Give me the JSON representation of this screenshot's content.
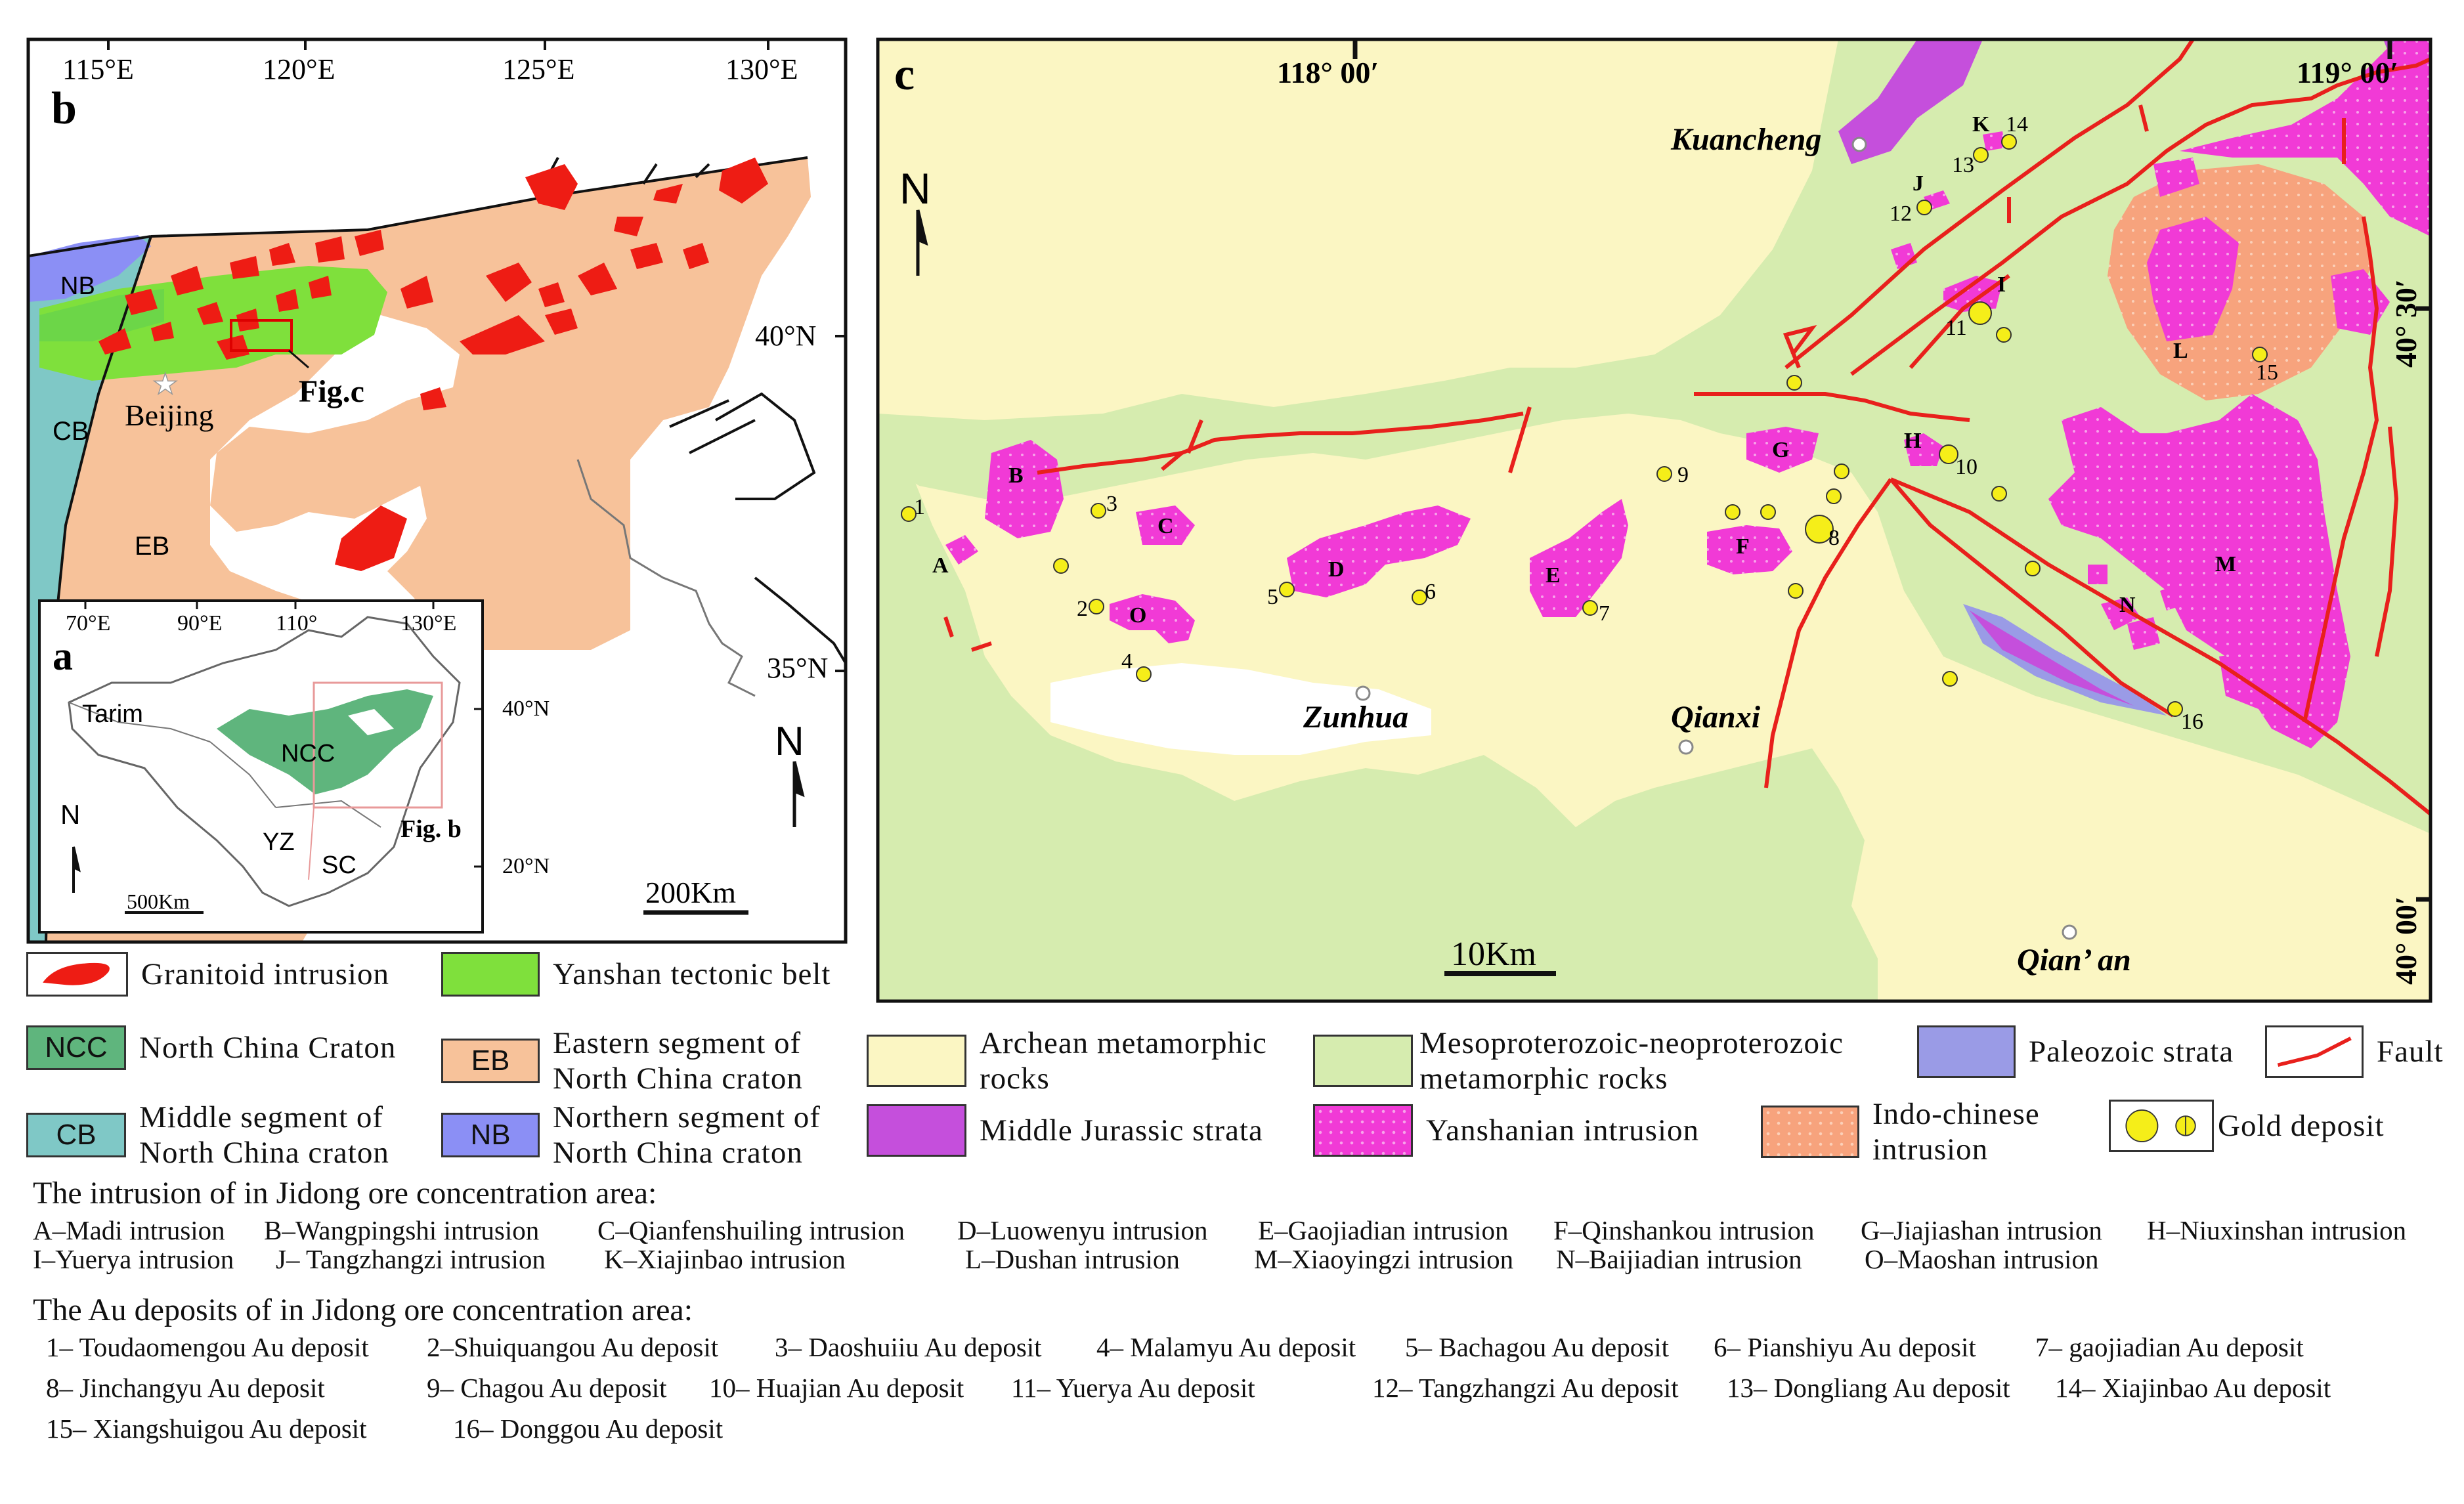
{
  "panel_b": {
    "letter": "b",
    "lon_labels": [
      "115°E",
      "120°E",
      "125°E",
      "130°E"
    ],
    "lat_labels": [
      "40°N",
      "35°N"
    ],
    "region_labels": {
      "nb": "NB",
      "cb": "CB",
      "eb": "EB"
    },
    "city": "Beijing",
    "figc": "Fig.c",
    "north": "N",
    "scale": "200Km"
  },
  "panel_a": {
    "letter": "a",
    "lon_labels": [
      "70°E",
      "90°E",
      "110°",
      "130°E"
    ],
    "lat_labels": [
      "40°N",
      "20°N"
    ],
    "labels": {
      "tarim": "Tarim",
      "ncc": "NCC",
      "yz": "YZ",
      "sc": "SC"
    },
    "figb": "Fig. b",
    "north": "N",
    "scale": "500Km"
  },
  "panel_c": {
    "letter": "c",
    "lon_left": "118° 00′",
    "lon_right": "119° 00′",
    "lat_labels": [
      "40° 30′",
      "40° 00′"
    ],
    "north": "N",
    "scale": "10Km",
    "towns": {
      "kuancheng": "Kuancheng",
      "zunhua": "Zunhua",
      "qianxi": "Qianxi",
      "qianan": "Qian’ an"
    },
    "intrusion_letters": [
      "A",
      "B",
      "C",
      "D",
      "E",
      "F",
      "G",
      "H",
      "I",
      "J",
      "K",
      "L",
      "M",
      "N",
      "O"
    ],
    "deposit_numbers": [
      "1",
      "2",
      "3",
      "4",
      "5",
      "6",
      "7",
      "8",
      "9",
      "10",
      "11",
      "12",
      "13",
      "14",
      "15",
      "16"
    ]
  },
  "legend": {
    "granitoid": "Granitoid intrusion",
    "yanshan_belt": "Yanshan tectonic belt",
    "ncc_code": "NCC",
    "ncc": "North China Craton",
    "eb_code": "EB",
    "eb": [
      "Eastern segment of",
      "North China craton"
    ],
    "archean": [
      "Archean metamorphic",
      "rocks"
    ],
    "meso": [
      "Mesoproterozoic-neoproterozoic",
      "metamorphic rocks"
    ],
    "paleozoic": "Paleozoic strata",
    "fault": "Fault",
    "cb_code": "CB",
    "cb": [
      "Middle segment of",
      "North China craton"
    ],
    "nb_code": "NB",
    "nb": [
      "Northern segment of",
      "North China craton"
    ],
    "jurassic": "Middle Jurassic strata",
    "yanshanian": "Yanshanian intrusion",
    "indo": [
      "Indo-chinese",
      "intrusion"
    ],
    "gold": "Gold deposit",
    "colors": {
      "granitoid": "#ee1c14",
      "yanshan_belt": "#7fe03c",
      "ncc": "#5fb57d",
      "eb": "#f7c29a",
      "cb": "#7fc8c6",
      "nb": "#8b8ff5",
      "archean": "#fbf6c3",
      "meso": "#d6ecaf",
      "paleozoic": "#9a9be6",
      "jurassic": "#c54fdc",
      "yanshanian": "#f13ad6",
      "indo": "#f7a37d",
      "gold": "#f5ee19",
      "fault": "#e8201c"
    }
  },
  "notes": {
    "intrusion_heading": "The intrusion of in Jidong ore concentration area:",
    "intrusions": [
      "A–Madi intrusion",
      "B–Wangpingshi intrusion",
      "C–Qianfenshuiling intrusion",
      "D–Luowenyu intrusion",
      "E–Gaojiadian intrusion",
      "F–Qinshankou intrusion",
      "G–Jiajiashan intrusion",
      "H–Niuxinshan intrusion",
      "I–Yuerya intrusion",
      "J– Tangzhangzi intrusion",
      "K–Xiajinbao intrusion",
      "L–Dushan intrusion",
      "M–Xiaoyingzi intrusion",
      "N–Baijiadian intrusion",
      "O–Maoshan intrusion"
    ],
    "deposit_heading": "The Au deposits of in Jidong ore concentration area:",
    "deposits": [
      "1– Toudaomengou Au deposit",
      "2–Shuiquangou Au deposit",
      "3– Daoshuiiu Au deposit",
      "4– Malamyu Au deposit",
      "5– Bachagou Au deposit",
      "6– Pianshiyu Au deposit",
      "7– gaojiadian Au deposit",
      "8– Jinchangyu Au deposit",
      "9– Chagou Au deposit",
      "10– Huajian Au deposit",
      "11– Yuerya Au deposit",
      "12– Tangzhangzi Au deposit",
      "13– Dongliang Au deposit",
      "14– Xiajinbao Au deposit",
      "15– Xiangshuigou Au deposit",
      "16– Donggou Au deposit"
    ]
  }
}
